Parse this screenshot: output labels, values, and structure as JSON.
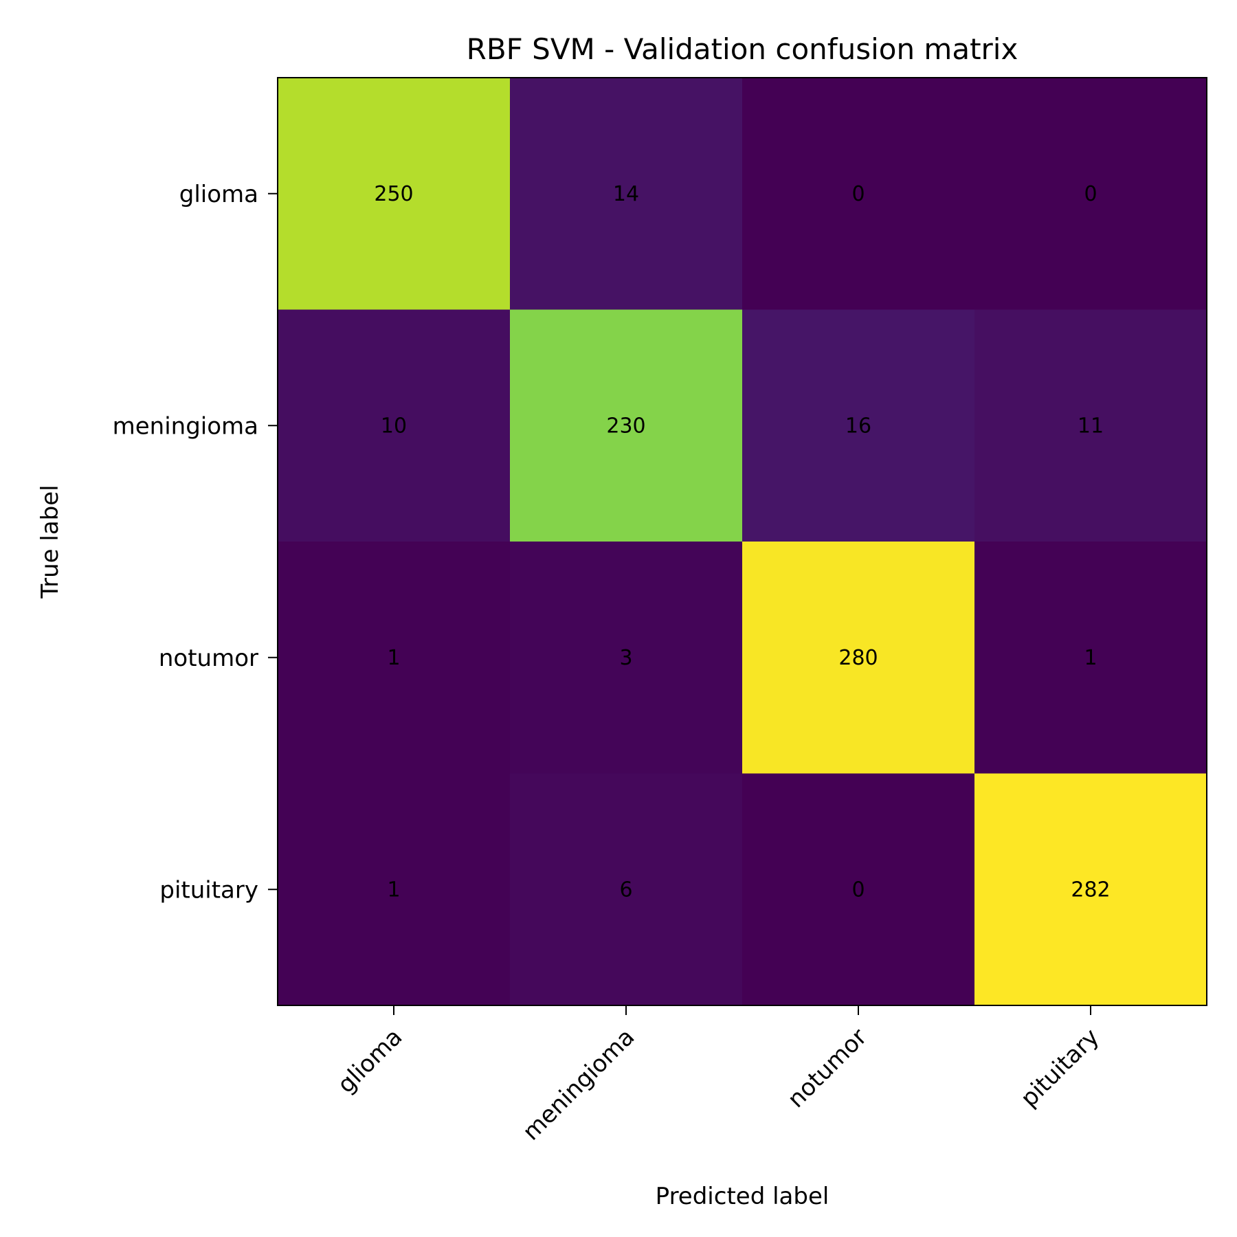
{
  "chart_data": {
    "type": "heatmap",
    "title": "RBF SVM - Validation confusion matrix",
    "xlabel": "Predicted label",
    "ylabel": "True label",
    "x_categories": [
      "glioma",
      "meningioma",
      "notumor",
      "pituitary"
    ],
    "y_categories": [
      "glioma",
      "meningioma",
      "notumor",
      "pituitary"
    ],
    "values": [
      [
        250,
        14,
        0,
        0
      ],
      [
        10,
        230,
        16,
        11
      ],
      [
        1,
        3,
        280,
        1
      ],
      [
        1,
        6,
        0,
        282
      ]
    ],
    "colormap": "viridis",
    "value_range": [
      0,
      282
    ],
    "grid": false,
    "colorbar": false
  }
}
